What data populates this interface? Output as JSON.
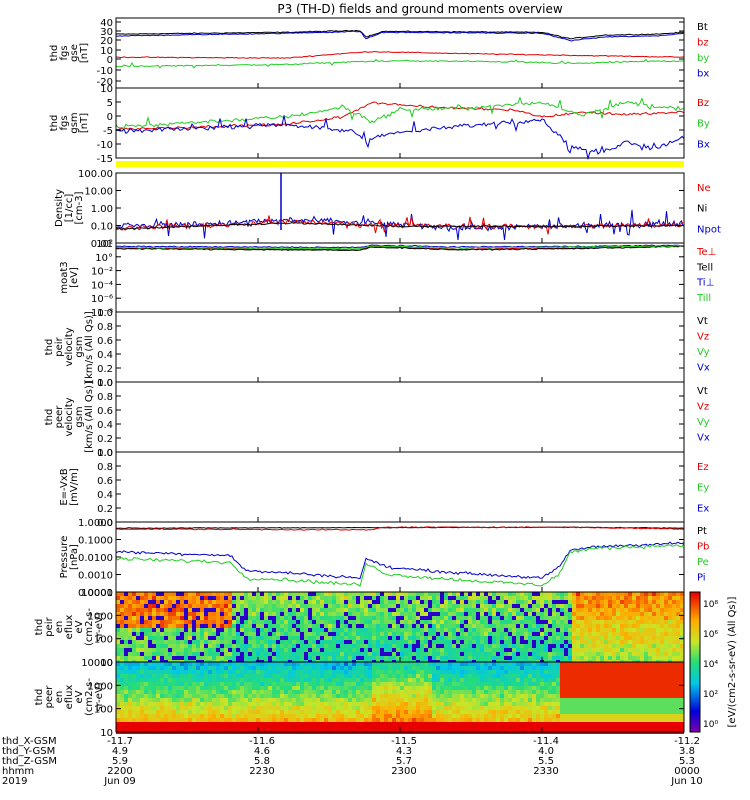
{
  "title": "P3 (TH-D) fields and ground moments overview",
  "colors": {
    "black": "#000000",
    "red": "#e00000",
    "green": "#22cc22",
    "blue": "#0000cc",
    "yellow": "#ffff00"
  },
  "panels": [
    {
      "ylabel": [
        "thd",
        "fgs",
        "gse",
        "[nT]"
      ],
      "ticks": [
        "40",
        "30",
        "20",
        "10",
        "0",
        "-10",
        "-20"
      ],
      "legend": [
        {
          "text": "Bt",
          "color": "black"
        },
        {
          "text": "bz",
          "color": "red"
        },
        {
          "text": "by",
          "color": "green"
        },
        {
          "text": "bx",
          "color": "blue"
        }
      ]
    },
    {
      "ylabel": [
        "thd",
        "fgs",
        "gsm",
        "[nT]"
      ],
      "ticks": [
        "10",
        "5",
        "0",
        "-5",
        "-10",
        "-15"
      ],
      "legend": [
        {
          "text": "Bz",
          "color": "red"
        },
        {
          "text": "By",
          "color": "green"
        },
        {
          "text": "Bx",
          "color": "blue"
        }
      ]
    },
    {
      "ylabel": [
        "Density",
        "[1/cc]",
        "[cm-3]"
      ],
      "ticks": [
        "100.00",
        "10.00",
        "1.00",
        "0.10",
        "0.01"
      ],
      "legend": [
        {
          "text": "Ne",
          "color": "red"
        },
        {
          "text": "Ni",
          "color": "black"
        },
        {
          "text": "Npot",
          "color": "blue"
        }
      ]
    },
    {
      "ylabel": [
        "moat3",
        "[eV]"
      ],
      "ticks": [
        "10²",
        "10°",
        "10⁻²",
        "10⁻⁴",
        "10⁻⁶",
        "10⁻⁸"
      ],
      "legend": [
        {
          "text": "Te⊥",
          "color": "red"
        },
        {
          "text": "Tell",
          "color": "black"
        },
        {
          "text": "Ti⊥",
          "color": "blue"
        },
        {
          "text": "Till",
          "color": "green"
        }
      ]
    },
    {
      "ylabel": [
        "thd",
        "peir",
        "velocity",
        "gsm",
        "[km/s (All Qs)]"
      ],
      "ticks": [
        "1.0",
        "0.8",
        "0.6",
        "0.4",
        "0.2",
        "0.0"
      ],
      "legend": [
        {
          "text": "Vt",
          "color": "black"
        },
        {
          "text": "Vz",
          "color": "red"
        },
        {
          "text": "Vy",
          "color": "green"
        },
        {
          "text": "Vx",
          "color": "blue"
        }
      ]
    },
    {
      "ylabel": [
        "thd",
        "peer",
        "velocity",
        "gsm",
        "[km/s (All Qs)]"
      ],
      "ticks": [
        "1.0",
        "0.8",
        "0.6",
        "0.4",
        "0.2",
        "0.0"
      ],
      "legend": [
        {
          "text": "Vt",
          "color": "black"
        },
        {
          "text": "Vz",
          "color": "red"
        },
        {
          "text": "Vy",
          "color": "green"
        },
        {
          "text": "Vx",
          "color": "blue"
        }
      ]
    },
    {
      "ylabel": [
        "E=-VxB",
        "[mV/m]"
      ],
      "ticks": [
        "1.0",
        "0.8",
        "0.6",
        "0.4",
        "0.2",
        "0.0"
      ],
      "legend": [
        {
          "text": "Ez",
          "color": "red"
        },
        {
          "text": "Ey",
          "color": "green"
        },
        {
          "text": "Ex",
          "color": "blue"
        }
      ]
    },
    {
      "ylabel": [
        "Pressure",
        "[nPa]"
      ],
      "ticks": [
        "1.0000",
        "0.1000",
        "0.0100",
        "0.0010",
        "0.0001"
      ],
      "legend": [
        {
          "text": "Pt",
          "color": "black"
        },
        {
          "text": "Pb",
          "color": "red"
        },
        {
          "text": "Pe",
          "color": "green"
        },
        {
          "text": "Pi",
          "color": "blue"
        }
      ]
    },
    {
      "ylabel": [
        "thd",
        "peir",
        "en",
        "eflux",
        "eV",
        "(cm2-s-",
        "sr-eV)"
      ],
      "ticks": [
        "10000",
        "1000",
        "100",
        "10"
      ],
      "legend": []
    },
    {
      "ylabel": [
        "thd",
        "peer",
        "en",
        "eflux",
        "eV",
        "(cm2-s-",
        "sr-eV)"
      ],
      "ticks": [
        "10000",
        "1000",
        "100",
        "10"
      ],
      "legend": []
    }
  ],
  "colorbar": {
    "label": "[eV/(cm2-s-sr-eV) (All Qs)]",
    "ticks": [
      "10⁸",
      "10⁶",
      "10⁴",
      "10²",
      "10⁰"
    ]
  },
  "xaxis": {
    "rows": [
      {
        "label": "thd_X-GSM",
        "values": [
          "-11.7",
          "-11.6",
          "-11.5",
          "-11.4",
          "-11.2"
        ]
      },
      {
        "label": "thd_Y-GSM",
        "values": [
          "4.9",
          "4.6",
          "4.3",
          "4.0",
          "3.8"
        ]
      },
      {
        "label": "thd_Z-GSM",
        "values": [
          "5.9",
          "5.8",
          "5.7",
          "5.5",
          "5.3"
        ]
      },
      {
        "label": "hhmm",
        "values": [
          "2200",
          "2230",
          "2300",
          "2330",
          "0000"
        ]
      },
      {
        "label": "2019",
        "values": [
          "Jun 09",
          "",
          "",
          "",
          "Jun 10"
        ]
      }
    ]
  },
  "chart_data": [
    {
      "type": "line",
      "ylabel": "thd fgs gse [nT]",
      "ylim": [
        -20,
        40
      ],
      "x": [
        "2200",
        "2230",
        "2300",
        "2330",
        "0000"
      ],
      "series": [
        {
          "name": "Bt",
          "values": [
            27,
            30,
            30,
            29,
            27
          ]
        },
        {
          "name": "bz",
          "values": [
            2,
            1,
            7,
            4,
            2
          ]
        },
        {
          "name": "by",
          "values": [
            -8,
            -6,
            -2,
            -4,
            -3
          ]
        },
        {
          "name": "bx",
          "values": [
            26,
            29,
            29,
            27,
            25
          ]
        }
      ]
    },
    {
      "type": "line",
      "ylabel": "thd fgs gsm [nT]",
      "ylim": [
        -18,
        10
      ],
      "x": [
        "2200",
        "2230",
        "2300",
        "2330",
        "0000"
      ],
      "series": [
        {
          "name": "Bz",
          "values": [
            -5,
            -3,
            5,
            2,
            2
          ]
        },
        {
          "name": "By",
          "values": [
            -4,
            1,
            2,
            4,
            3
          ]
        },
        {
          "name": "Bx",
          "values": [
            -5,
            -4,
            -9,
            -12,
            -8
          ]
        }
      ]
    },
    {
      "type": "line",
      "ylabel": "Density [1/cc] [cm-3]",
      "ylim": [
        0.01,
        100
      ],
      "x": [
        "2200",
        "2230",
        "2300",
        "2330",
        "0000"
      ],
      "series": [
        {
          "name": "Ne",
          "values": [
            0.1,
            0.3,
            0.15,
            0.1,
            0.15
          ]
        },
        {
          "name": "Ni",
          "values": [
            0.1,
            0.25,
            0.12,
            0.1,
            0.15
          ]
        },
        {
          "name": "Npot",
          "values": [
            0.2,
            0.5,
            0.2,
            0.1,
            0.3
          ]
        }
      ]
    },
    {
      "type": "line",
      "ylabel": "Pressure [nPa]",
      "ylim": [
        0.0001,
        1
      ],
      "x": [
        "2200",
        "2230",
        "2300",
        "2330",
        "0000"
      ],
      "series": [
        {
          "name": "Pt",
          "values": [
            0.5,
            0.5,
            0.5,
            0.5,
            0.5
          ]
        },
        {
          "name": "Pb",
          "values": [
            0.5,
            0.5,
            0.5,
            0.5,
            0.4
          ]
        },
        {
          "name": "Pe",
          "values": [
            0.007,
            0.0005,
            0.0004,
            0.0005,
            0.06
          ]
        },
        {
          "name": "Pi",
          "values": [
            0.02,
            0.002,
            0.001,
            0.0015,
            0.07
          ]
        }
      ]
    },
    {
      "type": "heatmap",
      "ylabel": "thd peir en eflux eV (cm2-s-sr-eV)",
      "ylim": [
        5,
        20000
      ]
    },
    {
      "type": "heatmap",
      "ylabel": "thd peer en eflux eV (cm2-s-sr-eV)",
      "ylim": [
        5,
        20000
      ]
    }
  ]
}
